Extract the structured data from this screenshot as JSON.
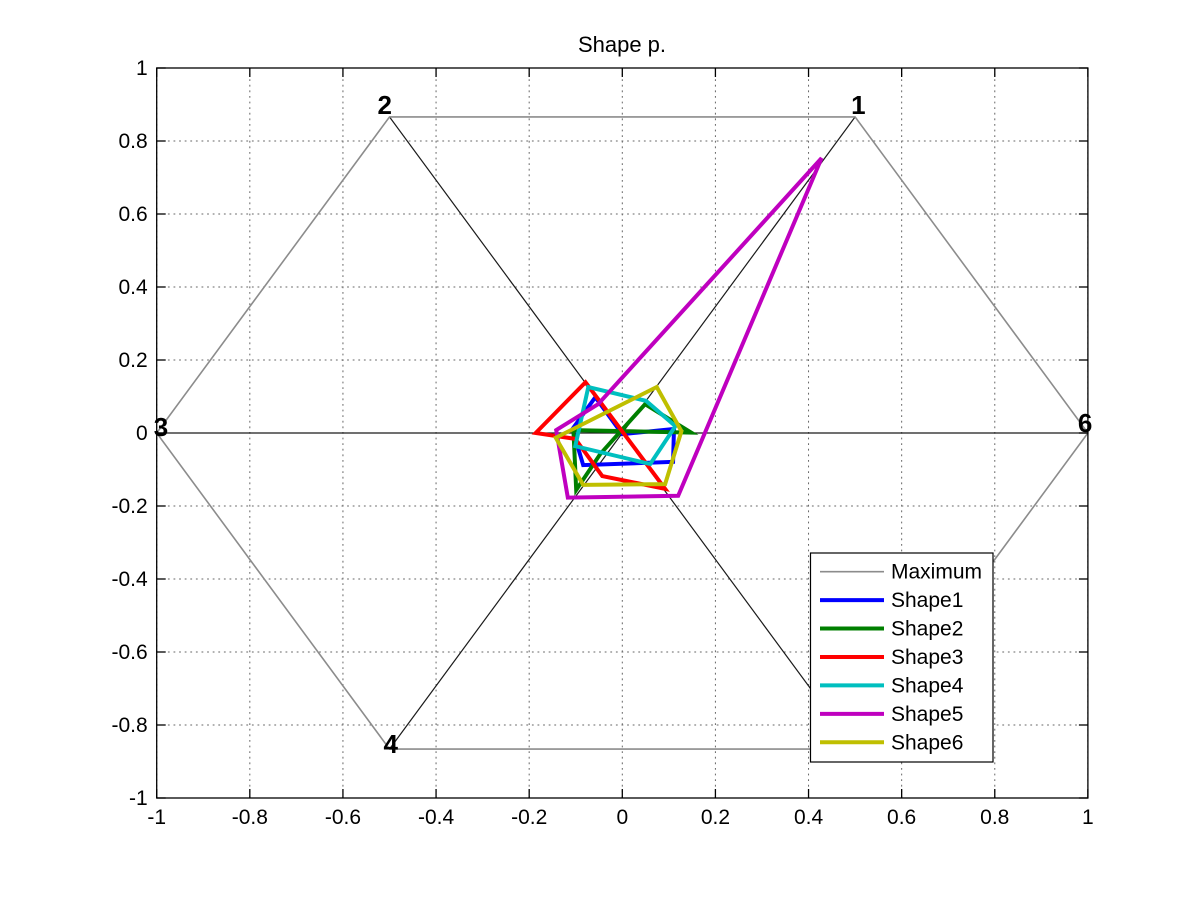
{
  "figure": {
    "background": "#ffffff"
  },
  "chart_data": {
    "type": "line",
    "subtype": "star-glyph-shape-plot",
    "title": "Shape p.",
    "xlabel": "",
    "ylabel": "",
    "xlim": [
      -1,
      1
    ],
    "ylim": [
      -1,
      1
    ],
    "grid": "dotted",
    "axis_color": "#000000",
    "grid_color": "#666666",
    "xticks": {
      "values": [
        -1,
        -0.8,
        -0.6,
        -0.4,
        -0.2,
        0,
        0.2,
        0.4,
        0.6,
        0.8,
        1
      ],
      "labels": [
        "-1",
        "-0.8",
        "-0.6",
        "-0.4",
        "-0.2",
        "0",
        "0.2",
        "0.4",
        "0.6",
        "0.8",
        "1"
      ]
    },
    "yticks": {
      "values": [
        -1,
        -0.8,
        -0.6,
        -0.4,
        -0.2,
        0,
        0.2,
        0.4,
        0.6,
        0.8,
        1
      ],
      "labels": [
        "-1",
        "-0.8",
        "-0.6",
        "-0.4",
        "-0.2",
        "0",
        "0.2",
        "0.4",
        "0.6",
        "0.8",
        "1"
      ]
    },
    "maximum_glyph": {
      "name": "Maximum",
      "color": "#8c8c8c",
      "spoke_color": "#1a1a1a",
      "hexagon": [
        [
          0.5,
          0.866
        ],
        [
          -0.5,
          0.866
        ],
        [
          -1,
          0
        ],
        [
          -0.5,
          -0.866
        ],
        [
          0.5,
          -0.866
        ],
        [
          1,
          0
        ]
      ]
    },
    "vertex_labels": [
      {
        "text": "1",
        "x": 0.5,
        "y": 0.866,
        "offset": [
          -4,
          -3
        ]
      },
      {
        "text": "2",
        "x": -0.5,
        "y": 0.866,
        "offset": [
          -12,
          -3
        ]
      },
      {
        "text": "3",
        "x": -1,
        "y": 0,
        "offset": [
          -3,
          3
        ]
      },
      {
        "text": "4",
        "x": -0.5,
        "y": -0.866,
        "offset": [
          -6,
          4
        ]
      },
      {
        "text": "6",
        "x": 1,
        "y": 0,
        "offset": [
          -10,
          -1
        ]
      }
    ],
    "series": [
      {
        "name": "Shape1",
        "color": "#0000ff",
        "points": [
          [
            -0.058,
            0.098
          ],
          [
            0.0,
            -0.003
          ],
          [
            0.111,
            0.011
          ],
          [
            0.109,
            -0.079
          ],
          [
            -0.084,
            -0.088
          ],
          [
            -0.107,
            0.011
          ]
        ]
      },
      {
        "name": "Shape2",
        "color": "#007f00",
        "points": [
          [
            -0.105,
            0.008
          ],
          [
            0.148,
            0.001
          ],
          [
            0.049,
            0.079
          ],
          [
            -0.047,
            -0.057
          ],
          [
            -0.099,
            -0.156
          ]
        ]
      },
      {
        "name": "Shape3",
        "color": "#ff0000",
        "points": [
          [
            -0.186,
            0.0
          ],
          [
            -0.079,
            0.139
          ],
          [
            0.092,
            -0.153
          ],
          [
            -0.043,
            -0.118
          ],
          [
            -0.101,
            -0.016
          ]
        ]
      },
      {
        "name": "Shape4",
        "color": "#00bfbf",
        "points": [
          [
            -0.073,
            0.126
          ],
          [
            0.051,
            0.088
          ],
          [
            0.114,
            0.019
          ],
          [
            0.06,
            -0.085
          ],
          [
            -0.101,
            -0.036
          ]
        ]
      },
      {
        "name": "Shape5",
        "color": "#bf00bf",
        "points": [
          [
            -0.142,
            0.008
          ],
          [
            -0.052,
            0.079
          ],
          [
            0.428,
            0.753
          ],
          [
            0.12,
            -0.172
          ],
          [
            -0.117,
            -0.177
          ]
        ]
      },
      {
        "name": "Shape6",
        "color": "#bfbf00",
        "points": [
          [
            -0.143,
            -0.013
          ],
          [
            0.074,
            0.126
          ],
          [
            0.127,
            0.005
          ],
          [
            0.092,
            -0.14
          ],
          [
            -0.084,
            -0.142
          ]
        ]
      }
    ],
    "legend": {
      "position": "bottom-right",
      "entries": [
        {
          "label": "Maximum",
          "color": "#8c8c8c",
          "thick": false
        },
        {
          "label": "Shape1",
          "color": "#0000ff",
          "thick": true
        },
        {
          "label": "Shape2",
          "color": "#007f00",
          "thick": true
        },
        {
          "label": "Shape3",
          "color": "#ff0000",
          "thick": true
        },
        {
          "label": "Shape4",
          "color": "#00bfbf",
          "thick": true
        },
        {
          "label": "Shape5",
          "color": "#bf00bf",
          "thick": true
        },
        {
          "label": "Shape6",
          "color": "#bfbf00",
          "thick": true
        }
      ]
    }
  }
}
